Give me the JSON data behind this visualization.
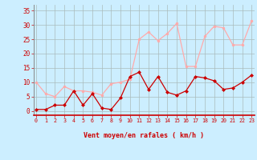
{
  "x": [
    0,
    1,
    2,
    3,
    4,
    5,
    6,
    7,
    8,
    9,
    10,
    11,
    12,
    13,
    14,
    15,
    16,
    17,
    18,
    19,
    20,
    21,
    22,
    23
  ],
  "rafales": [
    10,
    6,
    5,
    8.5,
    7,
    7,
    6.5,
    5.5,
    9.5,
    10,
    11,
    25,
    27.5,
    24.5,
    27,
    30.5,
    15.5,
    15.5,
    26,
    29.5,
    29,
    23,
    23,
    31.5
  ],
  "moyen": [
    0.5,
    0.5,
    2,
    2,
    7,
    2,
    6,
    1,
    0.5,
    4.5,
    12,
    13.5,
    7.5,
    12,
    6.5,
    5.5,
    7,
    12,
    11.5,
    10.5,
    7.5,
    8,
    10,
    12.5
  ],
  "bg_color": "#cceeff",
  "grid_color": "#aabbbb",
  "rafales_color": "#ffaaaa",
  "moyen_color": "#cc0000",
  "xlabel": "Vent moyen/en rafales ( km/h )",
  "xlabel_color": "#cc0000",
  "tick_color": "#cc0000",
  "ylabel_ticks": [
    0,
    5,
    10,
    15,
    20,
    25,
    30,
    35
  ],
  "xlim": [
    -0.3,
    23.3
  ],
  "ylim": [
    -1.5,
    37
  ]
}
